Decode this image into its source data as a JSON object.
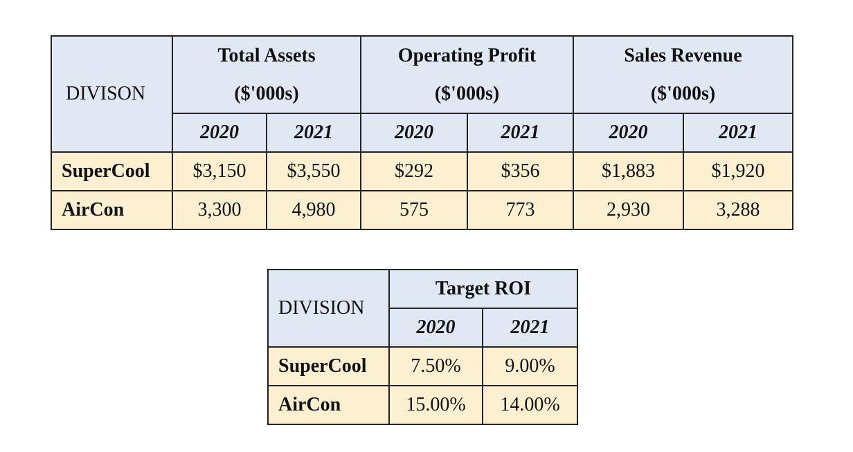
{
  "table1": {
    "division_header": "DIVISON",
    "groups": [
      {
        "title": "Total Assets",
        "unit": "($'000s)",
        "years": [
          "2020",
          "2021"
        ]
      },
      {
        "title": "Operating Profit",
        "unit": "($'000s)",
        "years": [
          "2020",
          "2021"
        ]
      },
      {
        "title": "Sales Revenue",
        "unit": "($'000s)",
        "years": [
          "2020",
          "2021"
        ]
      }
    ],
    "rows": [
      {
        "name": "SuperCool",
        "cells": [
          "$3,150",
          "$3,550",
          "$292",
          "$356",
          "$1,883",
          "$1,920"
        ]
      },
      {
        "name": "AirCon",
        "cells": [
          "3,300",
          "4,980",
          "575",
          "773",
          "2,930",
          "3,288"
        ]
      }
    ]
  },
  "table2": {
    "division_header": "DIVISION",
    "group": {
      "title": "Target ROI",
      "years": [
        "2020",
        "2021"
      ]
    },
    "rows": [
      {
        "name": "SuperCool",
        "cells": [
          "7.50%",
          "9.00%"
        ]
      },
      {
        "name": "AirCon",
        "cells": [
          "15.00%",
          "14.00%"
        ]
      }
    ]
  }
}
